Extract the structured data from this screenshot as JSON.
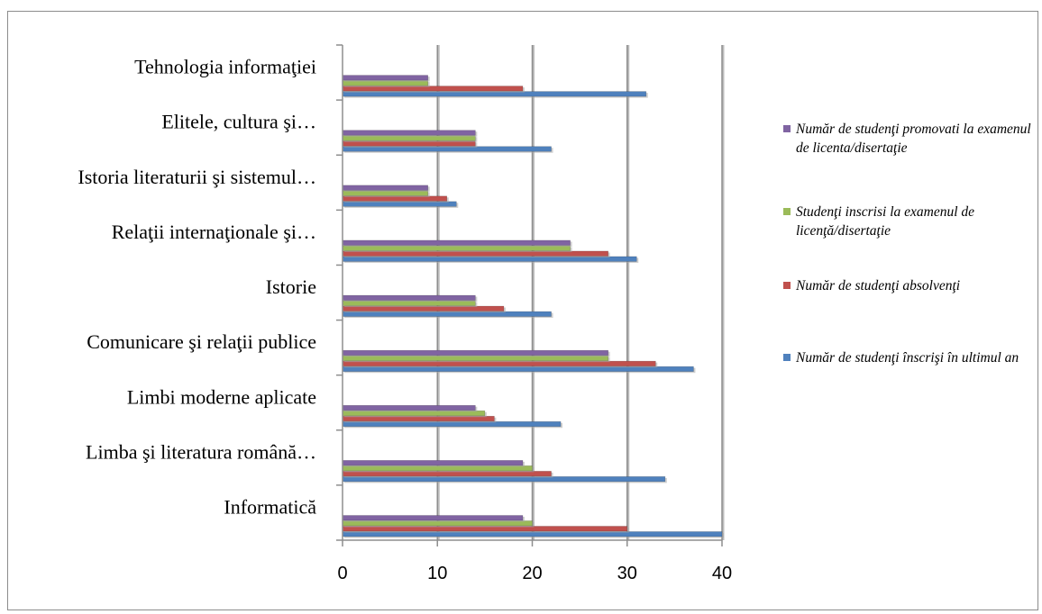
{
  "chart_data": {
    "type": "bar",
    "orientation": "horizontal",
    "categories": [
      "Informatică",
      "Limba şi literatura română…",
      "Limbi moderne aplicate",
      "Comunicare şi relaţii publice",
      "Istorie",
      "Relaţii internaţionale şi…",
      "Istoria literaturii şi sistemul…",
      "Elitele, cultura şi…",
      "Tehnologia informaţiei"
    ],
    "series": [
      {
        "name": "Număr de studenţi înscrişi în ultimul an",
        "color": "#4F81BD",
        "values": [
          40,
          34,
          23,
          37,
          22,
          31,
          12,
          22,
          32
        ]
      },
      {
        "name": "Număr de studenţi absolvenţi",
        "color": "#C0504D",
        "values": [
          30,
          22,
          16,
          33,
          17,
          28,
          11,
          14,
          19
        ]
      },
      {
        "name": "Studenţi inscrisi la examenul de licenţă/disertaţie",
        "color": "#9BBB59",
        "values": [
          20,
          20,
          15,
          28,
          14,
          24,
          9,
          14,
          9
        ]
      },
      {
        "name": "Număr de studenţi promovati la examenul de licenta/disertaţie",
        "color": "#8064A2",
        "values": [
          19,
          19,
          14,
          28,
          14,
          24,
          9,
          14,
          9
        ]
      }
    ],
    "x_ticks": [
      "0",
      "10",
      "20",
      "30",
      "40"
    ],
    "xlim": [
      0,
      40
    ],
    "grid": true,
    "legend_position": "right"
  },
  "legend": {
    "items": [
      {
        "label": "Număr de studenţi promovati la examenul de licenta/disertaţie",
        "color": "#8064A2"
      },
      {
        "label": "Studenţi inscrisi la examenul de licenţă/disertaţie",
        "color": "#9BBB59"
      },
      {
        "label": "Număr de studenţi absolvenţi",
        "color": "#C0504D"
      },
      {
        "label": "Număr de studenţi înscrişi în ultimul an",
        "color": "#4F81BD"
      }
    ]
  }
}
